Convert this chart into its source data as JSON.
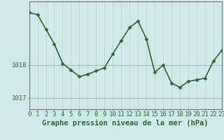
{
  "hours": [
    0,
    1,
    2,
    3,
    4,
    5,
    6,
    7,
    8,
    9,
    10,
    11,
    12,
    13,
    14,
    15,
    16,
    17,
    18,
    19,
    20,
    21,
    22,
    23
  ],
  "pressure": [
    1019.6,
    1019.55,
    1019.1,
    1018.65,
    1018.05,
    1017.85,
    1017.65,
    1017.72,
    1017.82,
    1017.92,
    1018.35,
    1018.75,
    1019.15,
    1019.35,
    1018.8,
    1017.78,
    1018.0,
    1017.45,
    1017.32,
    1017.5,
    1017.55,
    1017.6,
    1018.12,
    1018.45
  ],
  "line_color": "#2d6a2d",
  "marker": "D",
  "marker_size": 2.5,
  "background_color": "#ceeaea",
  "vgrid_color": "#b8d4d4",
  "hgrid_color": "#9ababa",
  "xlabel": "Graphe pression niveau de la mer (hPa)",
  "xlabel_fontsize": 7.5,
  "ytick_labels": [
    "1017",
    "1018"
  ],
  "ylim": [
    1016.65,
    1019.95
  ],
  "yticks": [
    1017.0,
    1018.0
  ],
  "axis_color": "#666666",
  "tick_color": "#2d6a2d",
  "tick_fontsize": 6.5,
  "linewidth": 1.2
}
